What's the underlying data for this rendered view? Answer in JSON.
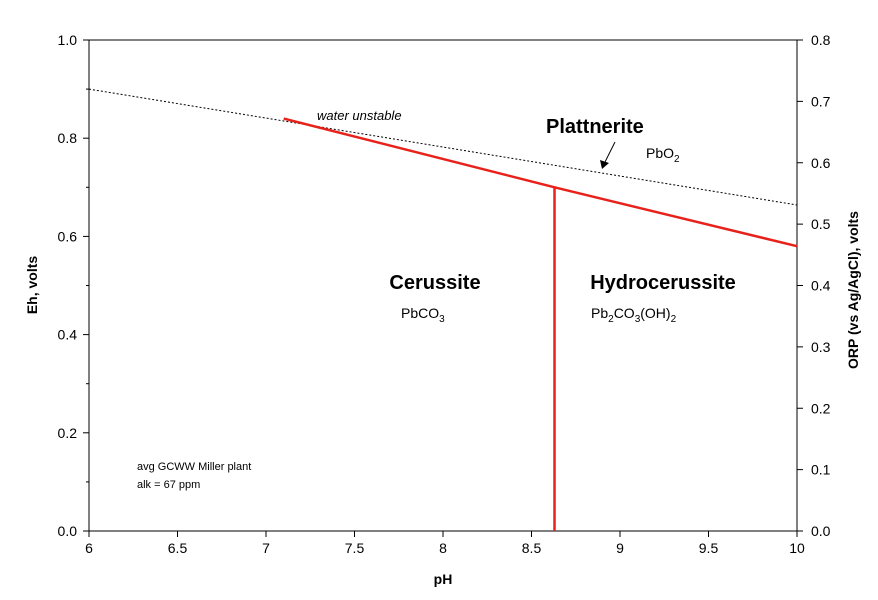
{
  "chart_data": {
    "type": "line",
    "title": "",
    "xlabel": "pH",
    "ylabel": "Eh, volts",
    "y2label": "ORP (vs Ag/AgCl), volts",
    "xlim": [
      6,
      10
    ],
    "ylim": [
      0,
      1.0
    ],
    "y2lim": [
      0,
      0.8
    ],
    "grid": false,
    "x_ticks": [
      "6",
      "6.5",
      "7",
      "7.5",
      "8",
      "8.5",
      "9",
      "9.5",
      "10"
    ],
    "y_ticks": [
      "0.0",
      "0.2",
      "0.4",
      "0.6",
      "0.8",
      "1.0"
    ],
    "y2_ticks": [
      "0.0",
      "0.1",
      "0.2",
      "0.3",
      "0.4",
      "0.5",
      "0.6",
      "0.7",
      "0.8"
    ],
    "series": [
      {
        "style": "dotted",
        "color": "#000000",
        "x": [
          6,
          10
        ],
        "y": [
          0.9,
          0.664
        ]
      },
      {
        "style": "solid",
        "color": "#e8211a",
        "x": [
          7.1,
          8.63,
          10
        ],
        "y": [
          0.84,
          0.7,
          0.58
        ]
      },
      {
        "style": "solid",
        "color": "#e8211a",
        "x": [
          8.63,
          8.63
        ],
        "y": [
          0.7,
          0
        ]
      }
    ],
    "annotations": {
      "water_unstable": "water unstable",
      "plattnerite": {
        "name": "Plattnerite",
        "formula_main": "PbO",
        "formula_sub": "2"
      },
      "cerussite": {
        "name": "Cerussite",
        "formula_a": "PbCO",
        "formula_b": "3"
      },
      "hydrocerussite": {
        "name": "Hydrocerussite",
        "f1": "Pb",
        "f2": "2",
        "f3": "CO",
        "f4": "3",
        "f5": "(OH)",
        "f6": "2"
      },
      "note_line1": "avg GCWW Miller plant",
      "note_line2": "alk = 67 ppm"
    }
  }
}
